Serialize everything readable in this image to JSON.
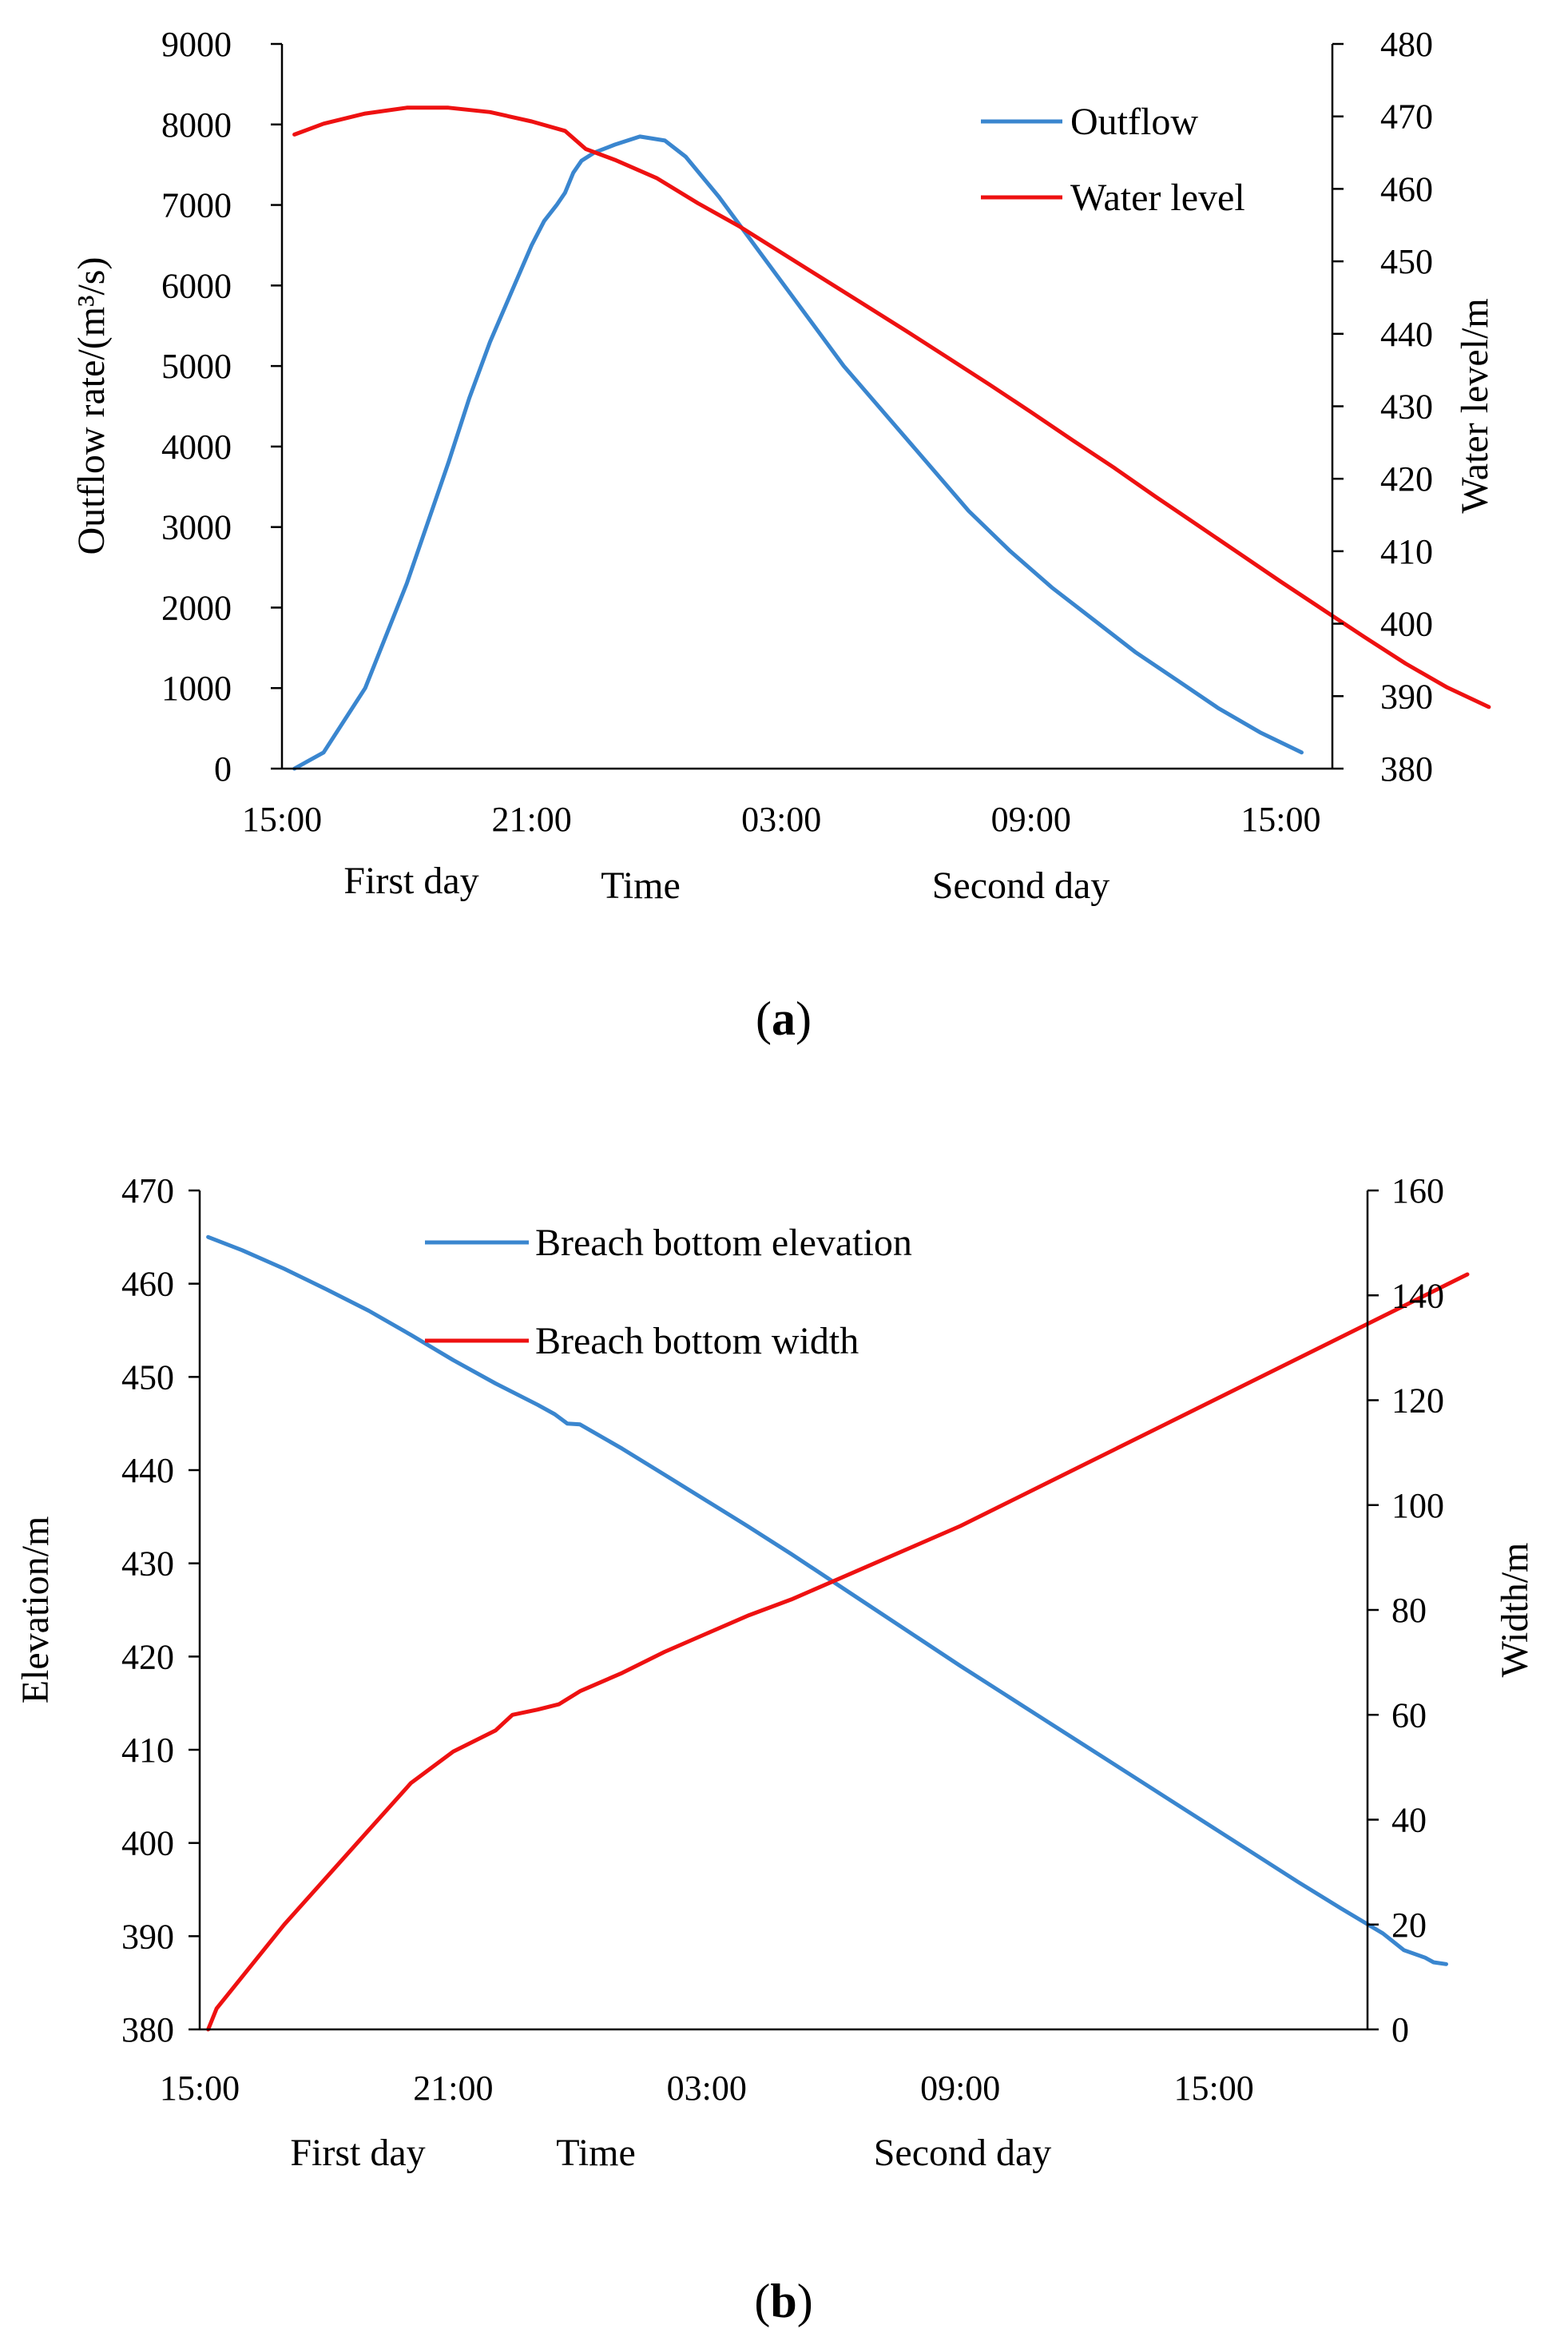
{
  "colors": {
    "outflow": "#3a86cf",
    "water": "#ee1111",
    "elevation": "#3a86cf",
    "width": "#ee1111",
    "axis": "#000000"
  },
  "chart_data": [
    {
      "id": "a",
      "type": "line",
      "caption_letter": "a",
      "xlabel": "Time",
      "day_labels": [
        "First day",
        "Second day"
      ],
      "x_unit": "hours from 15:00 of the first day",
      "xlim": [
        0,
        26
      ],
      "x_ticks": [
        0,
        6,
        12,
        18,
        24
      ],
      "x_tick_labels": [
        "15:00",
        "21:00",
        "03:00",
        "09:00",
        "15:00"
      ],
      "y_left": {
        "label": "Outflow rate/(m³/s)",
        "lim": [
          0,
          9000
        ],
        "ticks": [
          0,
          1000,
          2000,
          3000,
          4000,
          5000,
          6000,
          7000,
          8000,
          9000
        ]
      },
      "y_right": {
        "label": "Water level/m",
        "lim": [
          380,
          480
        ],
        "ticks": [
          380,
          390,
          400,
          410,
          420,
          430,
          440,
          450,
          460,
          470,
          480
        ]
      },
      "legend_position": "top-right",
      "series": [
        {
          "name": "Outflow",
          "axis": "left",
          "color_key": "outflow",
          "points": [
            [
              0.3,
              0
            ],
            [
              1,
              200
            ],
            [
              2,
              1000
            ],
            [
              3,
              2300
            ],
            [
              4,
              3800
            ],
            [
              4.5,
              4600
            ],
            [
              5,
              5300
            ],
            [
              5.5,
              5900
            ],
            [
              6,
              6500
            ],
            [
              6.3,
              6800
            ],
            [
              6.6,
              7000
            ],
            [
              6.8,
              7150
            ],
            [
              7,
              7400
            ],
            [
              7.2,
              7550
            ],
            [
              7.5,
              7650
            ],
            [
              8,
              7750
            ],
            [
              8.6,
              7850
            ],
            [
              9.2,
              7800
            ],
            [
              9.7,
              7600
            ],
            [
              10.5,
              7100
            ],
            [
              11.5,
              6400
            ],
            [
              12.5,
              5700
            ],
            [
              13.5,
              5000
            ],
            [
              14.5,
              4400
            ],
            [
              15.5,
              3800
            ],
            [
              16.5,
              3200
            ],
            [
              17.5,
              2700
            ],
            [
              18.5,
              2250
            ],
            [
              19.5,
              1850
            ],
            [
              20.5,
              1450
            ],
            [
              21.5,
              1100
            ],
            [
              22.5,
              750
            ],
            [
              23.5,
              450
            ],
            [
              24.5,
              200
            ]
          ]
        },
        {
          "name": "Water level",
          "axis": "right",
          "color_key": "water",
          "points": [
            [
              0.3,
              467.5
            ],
            [
              1,
              469
            ],
            [
              2,
              470.4
            ],
            [
              3,
              471.2
            ],
            [
              4,
              471.2
            ],
            [
              5,
              470.6
            ],
            [
              6,
              469.3
            ],
            [
              6.8,
              468
            ],
            [
              7.3,
              465.5
            ],
            [
              8,
              464
            ],
            [
              9,
              461.5
            ],
            [
              10,
              458
            ],
            [
              11,
              454.8
            ],
            [
              12,
              451.2
            ],
            [
              13,
              447.6
            ],
            [
              14,
              444
            ],
            [
              15,
              440.4
            ],
            [
              16,
              436.7
            ],
            [
              17,
              433
            ],
            [
              18,
              429.2
            ],
            [
              19,
              425.3
            ],
            [
              20,
              421.5
            ],
            [
              21,
              417.5
            ],
            [
              22,
              413.6
            ],
            [
              23,
              409.7
            ],
            [
              24,
              405.8
            ],
            [
              25,
              402
            ],
            [
              26,
              398.2
            ],
            [
              27,
              394.5
            ],
            [
              28,
              391.2
            ],
            [
              29,
              388.5
            ]
          ]
        }
      ]
    },
    {
      "id": "b",
      "type": "line",
      "caption_letter": "b",
      "xlabel": "Time",
      "day_labels": [
        "First day",
        "Second day"
      ],
      "x_unit": "hours from 15:00 of the first day",
      "xlim": [
        0,
        27
      ],
      "x_ticks": [
        0,
        6,
        12,
        18,
        24
      ],
      "x_tick_labels": [
        "15:00",
        "21:00",
        "03:00",
        "09:00",
        "15:00"
      ],
      "y_left": {
        "label": "Elevation/m",
        "lim": [
          380,
          470
        ],
        "ticks": [
          380,
          390,
          400,
          410,
          420,
          430,
          440,
          450,
          460,
          470
        ]
      },
      "y_right": {
        "label": "Width/m",
        "lim": [
          0,
          160
        ],
        "ticks": [
          0,
          20,
          40,
          60,
          80,
          100,
          120,
          140,
          160
        ]
      },
      "legend_position": "top-center",
      "series": [
        {
          "name": "Breach bottom elevation",
          "axis": "left",
          "color_key": "elevation",
          "points": [
            [
              0.2,
              465
            ],
            [
              1,
              463.6
            ],
            [
              2,
              461.6
            ],
            [
              3,
              459.4
            ],
            [
              4,
              457.1
            ],
            [
              5,
              454.5
            ],
            [
              6,
              451.8
            ],
            [
              7,
              449.3
            ],
            [
              8,
              447
            ],
            [
              8.4,
              446
            ],
            [
              8.7,
              445
            ],
            [
              9,
              444.9
            ],
            [
              10,
              442.3
            ],
            [
              11,
              439.5
            ],
            [
              12,
              436.7
            ],
            [
              13,
              433.9
            ],
            [
              14,
              431
            ],
            [
              15,
              428
            ],
            [
              16,
              425
            ],
            [
              17,
              422
            ],
            [
              18,
              419
            ],
            [
              19,
              416.1
            ],
            [
              20,
              413.2
            ],
            [
              21,
              410.3
            ],
            [
              22,
              407.4
            ],
            [
              23,
              404.5
            ],
            [
              24,
              401.6
            ],
            [
              25,
              398.7
            ],
            [
              26,
              395.8
            ],
            [
              27,
              393
            ],
            [
              28,
              390.3
            ],
            [
              28.5,
              388.5
            ],
            [
              29,
              387.7
            ],
            [
              29.2,
              387.2
            ],
            [
              29.5,
              387
            ]
          ]
        },
        {
          "name": "Breach bottom width",
          "axis": "right",
          "color_key": "width",
          "points": [
            [
              0.2,
              0
            ],
            [
              0.4,
              4
            ],
            [
              1,
              10
            ],
            [
              2,
              20
            ],
            [
              3,
              29
            ],
            [
              4,
              38
            ],
            [
              5,
              47
            ],
            [
              6,
              53
            ],
            [
              7,
              57
            ],
            [
              7.4,
              60
            ],
            [
              8,
              61
            ],
            [
              8.5,
              62
            ],
            [
              9,
              64.5
            ],
            [
              10,
              68
            ],
            [
              11,
              72
            ],
            [
              12,
              75.5
            ],
            [
              13,
              79
            ],
            [
              14,
              82
            ],
            [
              15,
              85.5
            ],
            [
              16,
              89
            ],
            [
              17,
              92.5
            ],
            [
              18,
              96
            ],
            [
              19,
              100
            ],
            [
              20,
              104
            ],
            [
              21,
              108
            ],
            [
              22,
              112
            ],
            [
              23,
              116
            ],
            [
              24,
              120
            ],
            [
              25,
              124
            ],
            [
              26,
              128
            ],
            [
              27,
              132
            ],
            [
              28,
              136
            ],
            [
              29,
              140
            ],
            [
              29.5,
              142
            ],
            [
              30,
              144
            ]
          ]
        }
      ]
    }
  ]
}
